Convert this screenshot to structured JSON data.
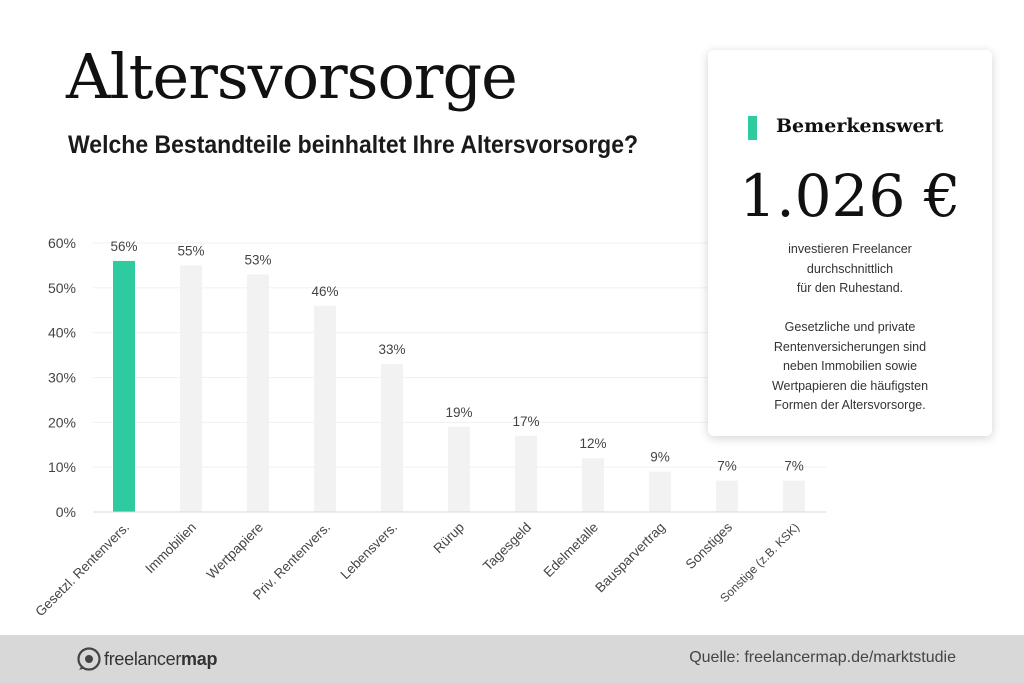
{
  "title": "Altersvorsorge",
  "subtitle": "Welche Bestandteile beinhaltet Ihre Altersvorsorge?",
  "colors": {
    "accent": "#2ecba0",
    "bar_default": "#f2f2f2",
    "footer_bg": "#d8d8d8"
  },
  "chart_data": {
    "type": "bar",
    "categories": [
      "Gesetzl. Rentenvers.",
      "Immobilien",
      "Wertpapiere",
      "Priv. Rentenvers.",
      "Lebensvers.",
      "Rürup",
      "Tagesgeld",
      "Edelmetalle",
      "Bausparvertrag",
      "Sonstiges",
      "Sonstige (z.B. KSK)"
    ],
    "values": [
      56,
      55,
      53,
      46,
      33,
      19,
      17,
      12,
      9,
      7,
      7
    ],
    "value_labels": [
      "56%",
      "55%",
      "53%",
      "46%",
      "33%",
      "19%",
      "17%",
      "12%",
      "9%",
      "7%",
      "7%"
    ],
    "highlight_index": 0,
    "ylim": [
      0,
      60
    ],
    "yticks": [
      0,
      10,
      20,
      30,
      40,
      50,
      60
    ],
    "ytick_labels": [
      "0%",
      "10%",
      "20%",
      "30%",
      "40%",
      "50%",
      "60%"
    ],
    "xlabel": "",
    "ylabel": "",
    "grid": true,
    "legend": false
  },
  "card": {
    "label": "Bemerkenswert",
    "value": "1.026 €",
    "text_lines": [
      "investieren Freelancer",
      "durchschnittlich",
      "für den Ruhestand."
    ],
    "description_lines": [
      "Gesetzliche und private",
      "Rentenversicherungen sind",
      "neben Immobilien sowie",
      "Wertpapieren die häufigsten",
      "Formen der Altersvorsorge."
    ]
  },
  "footer": {
    "logo_text_regular": "freelancer",
    "logo_text_bold": "map",
    "source": "Quelle: freelancermap.de/marktstudie"
  }
}
